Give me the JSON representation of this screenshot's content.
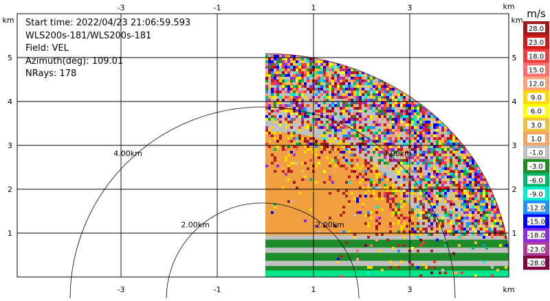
{
  "header": {
    "start_time": "Start time: 2022/04/23 21:06:59.593",
    "instrument": "WLS200s-181/WLS200s-181",
    "field": "Field: VEL",
    "azimuth": "Azimuth(deg): 109.01",
    "nrays": "NRays: 178"
  },
  "chart_data": {
    "type": "heatmap",
    "description_mode": "ppi-radar-sector",
    "x_unit_label": "km",
    "y_unit_label": "km",
    "x_ticks": [
      -3,
      -1,
      1,
      3
    ],
    "y_ticks": [
      1,
      2,
      3,
      4,
      5
    ],
    "x_range": [
      -4.2,
      4.6
    ],
    "y_range": [
      0,
      5.95
    ],
    "grid": true,
    "range_rings_km": [
      2,
      4
    ],
    "range_ring_labels": [
      "2.00km",
      "4.00km"
    ],
    "colorbar": {
      "unit": "m/s",
      "labels": [
        "28.0",
        "23.0",
        "18.0",
        "15.0",
        "12.0",
        "9.0",
        "6.0",
        "3.0",
        "1.0",
        "-1.0",
        "-3.0",
        "-6.0",
        "-9.0",
        "-12.0",
        "-15.0",
        "-18.0",
        "-23.0",
        "-28.0"
      ],
      "colors": [
        "#a01a1a",
        "#d01a1a",
        "#f53c3c",
        "#ff6e6e",
        "#ffa07a",
        "#ffd700",
        "#ffff00",
        "#f0c040",
        "#f4a460",
        "#c0c0c0",
        "#228b22",
        "#00b86b",
        "#00eecc",
        "#1e90ff",
        "#0000ff",
        "#8a2be2",
        "#b03a9a",
        "#800040"
      ]
    },
    "sector": {
      "azimuth_start_deg": 0,
      "azimuth_end_deg": 90,
      "max_range_km": 5.1,
      "bands": [
        {
          "from_km": 0.0,
          "to_km": 0.2,
          "dominant_velocity": "-6.0"
        },
        {
          "from_km": 0.2,
          "to_km": 0.9,
          "dominant_velocity": "-3.0 / -1.0"
        },
        {
          "from_km": 0.9,
          "to_km": 3.0,
          "dominant_velocity": "1.0"
        },
        {
          "from_km": 3.0,
          "to_km": 5.1,
          "dominant_velocity": "mixed / noisy"
        }
      ]
    }
  }
}
